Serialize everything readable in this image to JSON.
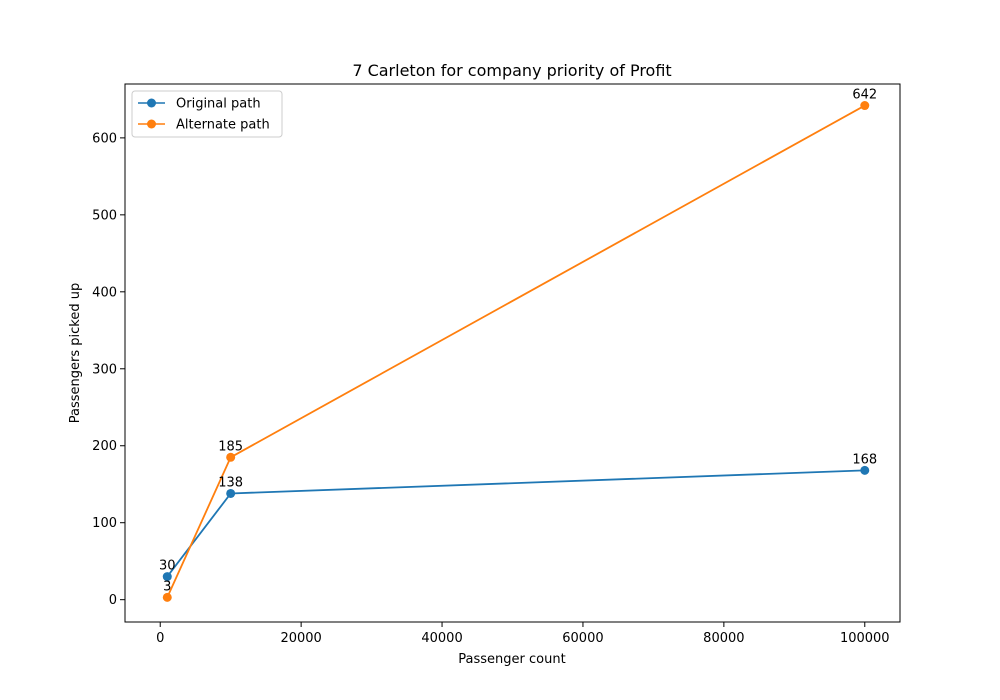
{
  "chart_data": {
    "type": "line",
    "title": "7 Carleton for company priority of Profit",
    "xlabel": "Passenger count",
    "ylabel": "Passengers picked up",
    "xlim": [
      -5000,
      105000
    ],
    "ylim": [
      -29,
      670
    ],
    "xticks": [
      0,
      20000,
      40000,
      60000,
      80000,
      100000
    ],
    "yticks": [
      0,
      100,
      200,
      300,
      400,
      500,
      600
    ],
    "grid": false,
    "legend_position": "upper-left",
    "series": [
      {
        "name": "Original path",
        "color": "#1f77b4",
        "x": [
          1000,
          10000,
          100000
        ],
        "y": [
          30,
          138,
          168
        ],
        "labels": [
          "30",
          "138",
          "168"
        ]
      },
      {
        "name": "Alternate path",
        "color": "#ff7f0e",
        "x": [
          1000,
          10000,
          100000
        ],
        "y": [
          3,
          185,
          642
        ],
        "labels": [
          "3",
          "185",
          "642"
        ]
      }
    ]
  }
}
